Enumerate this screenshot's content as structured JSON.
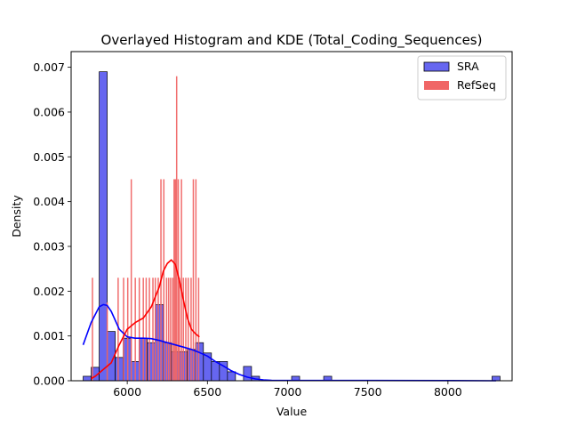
{
  "chart_data": {
    "type": "histogram",
    "title": "Overlayed Histogram and KDE (Total_Coding_Sequences)",
    "xlabel": "Value",
    "ylabel": "Density",
    "xlim": [
      5650,
      8400
    ],
    "ylim": [
      0,
      0.00735
    ],
    "xticks": [
      6000,
      6500,
      7000,
      7500,
      8000
    ],
    "yticks": [
      0.0,
      0.001,
      0.002,
      0.003,
      0.004,
      0.005,
      0.006,
      0.007
    ],
    "ytick_labels": [
      "0.000",
      "0.001",
      "0.002",
      "0.003",
      "0.004",
      "0.005",
      "0.006",
      "0.007"
    ],
    "grid": false,
    "legend_position": "top-right",
    "series": [
      {
        "name": "SRA",
        "color": "#0000ff",
        "bar_fill": "#6666f0",
        "bin_width": 50,
        "bins": [
          {
            "x0": 5725,
            "x1": 5775,
            "y": 0.0001
          },
          {
            "x0": 5775,
            "x1": 5825,
            "y": 0.0003
          },
          {
            "x0": 5825,
            "x1": 5875,
            "y": 0.0069
          },
          {
            "x0": 5875,
            "x1": 5925,
            "y": 0.0011
          },
          {
            "x0": 5925,
            "x1": 5975,
            "y": 0.00052
          },
          {
            "x0": 5975,
            "x1": 6025,
            "y": 0.00095
          },
          {
            "x0": 6025,
            "x1": 6075,
            "y": 0.00043
          },
          {
            "x0": 6075,
            "x1": 6125,
            "y": 0.00095
          },
          {
            "x0": 6125,
            "x1": 6175,
            "y": 0.00085
          },
          {
            "x0": 6175,
            "x1": 6225,
            "y": 0.0017
          },
          {
            "x0": 6225,
            "x1": 6275,
            "y": 0.00085
          },
          {
            "x0": 6275,
            "x1": 6325,
            "y": 0.00065
          },
          {
            "x0": 6325,
            "x1": 6375,
            "y": 0.00065
          },
          {
            "x0": 6375,
            "x1": 6425,
            "y": 0.0007
          },
          {
            "x0": 6425,
            "x1": 6475,
            "y": 0.00085
          },
          {
            "x0": 6475,
            "x1": 6525,
            "y": 0.00062
          },
          {
            "x0": 6525,
            "x1": 6575,
            "y": 0.00043
          },
          {
            "x0": 6575,
            "x1": 6625,
            "y": 0.00043
          },
          {
            "x0": 6625,
            "x1": 6675,
            "y": 0.0002
          },
          {
            "x0": 6725,
            "x1": 6775,
            "y": 0.00032
          },
          {
            "x0": 6775,
            "x1": 6825,
            "y": 0.0001
          },
          {
            "x0": 7025,
            "x1": 7075,
            "y": 0.0001
          },
          {
            "x0": 7225,
            "x1": 7275,
            "y": 0.0001
          },
          {
            "x0": 8275,
            "x1": 8325,
            "y": 0.0001
          }
        ],
        "kde": {
          "x": [
            5725,
            5775,
            5825,
            5850,
            5875,
            5900,
            5925,
            5950,
            6000,
            6050,
            6100,
            6150,
            6200,
            6250,
            6300,
            6350,
            6400,
            6450,
            6500,
            6550,
            6600,
            6650,
            6700,
            6750,
            6800,
            6850,
            6900,
            6950,
            7000,
            7100,
            7200,
            7300,
            7500,
            8000,
            8300
          ],
          "y": [
            0.0008,
            0.0013,
            0.00165,
            0.0017,
            0.00168,
            0.00155,
            0.00135,
            0.00115,
            0.00098,
            0.00095,
            0.00095,
            0.00094,
            0.0009,
            0.00085,
            0.0008,
            0.00075,
            0.0007,
            0.00063,
            0.00055,
            0.00043,
            0.00033,
            0.00022,
            0.00014,
            8e-05,
            4e-05,
            2e-05,
            1e-05,
            5e-06,
            5e-06,
            5e-06,
            5e-06,
            5e-06,
            5e-06,
            3e-06,
            0.0
          ]
        }
      },
      {
        "name": "RefSeq",
        "color": "#ff0000",
        "bar_fill": "#f06666",
        "bin_width": 8,
        "bins": [
          {
            "x": 5783,
            "y": 0.0023
          },
          {
            "x": 5875,
            "y": 0.00175
          },
          {
            "x": 5943,
            "y": 0.0023
          },
          {
            "x": 5977,
            "y": 0.0023
          },
          {
            "x": 6003,
            "y": 0.0023
          },
          {
            "x": 6025,
            "y": 0.0045
          },
          {
            "x": 6050,
            "y": 0.0023
          },
          {
            "x": 6075,
            "y": 0.0023
          },
          {
            "x": 6100,
            "y": 0.0023
          },
          {
            "x": 6118,
            "y": 0.0023
          },
          {
            "x": 6138,
            "y": 0.0023
          },
          {
            "x": 6160,
            "y": 0.0023
          },
          {
            "x": 6175,
            "y": 0.0023
          },
          {
            "x": 6193,
            "y": 0.0023
          },
          {
            "x": 6210,
            "y": 0.0045
          },
          {
            "x": 6228,
            "y": 0.0045
          },
          {
            "x": 6245,
            "y": 0.0023
          },
          {
            "x": 6258,
            "y": 0.0023
          },
          {
            "x": 6270,
            "y": 0.0023
          },
          {
            "x": 6283,
            "y": 0.0023
          },
          {
            "x": 6292,
            "y": 0.0045
          },
          {
            "x": 6300,
            "y": 0.0045
          },
          {
            "x": 6308,
            "y": 0.0068
          },
          {
            "x": 6318,
            "y": 0.0045
          },
          {
            "x": 6325,
            "y": 0.0023
          },
          {
            "x": 6338,
            "y": 0.0045
          },
          {
            "x": 6350,
            "y": 0.0023
          },
          {
            "x": 6365,
            "y": 0.0023
          },
          {
            "x": 6380,
            "y": 0.0023
          },
          {
            "x": 6398,
            "y": 0.0023
          },
          {
            "x": 6412,
            "y": 0.0045
          },
          {
            "x": 6428,
            "y": 0.0045
          },
          {
            "x": 6445,
            "y": 0.0023
          }
        ],
        "kde": {
          "x": [
            5775,
            5800,
            5850,
            5900,
            5950,
            6000,
            6050,
            6100,
            6150,
            6200,
            6225,
            6250,
            6275,
            6300,
            6325,
            6350,
            6375,
            6400,
            6425,
            6450
          ],
          "y": [
            5e-05,
            0.0001,
            0.00025,
            0.0004,
            0.0008,
            0.00115,
            0.0013,
            0.0014,
            0.00165,
            0.0021,
            0.00245,
            0.00262,
            0.0027,
            0.0026,
            0.00225,
            0.0018,
            0.0014,
            0.00115,
            0.00105,
            0.00098
          ]
        }
      }
    ]
  }
}
